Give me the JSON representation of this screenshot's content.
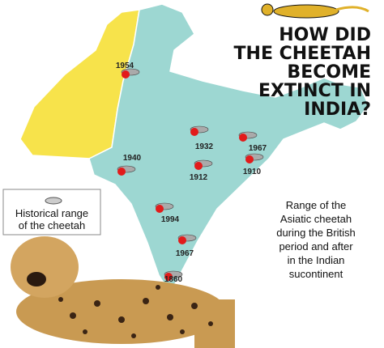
{
  "title_lines": [
    "HOW DID",
    "THE CHEETAH",
    "BECOME",
    "EXTINCT IN",
    "INDIA?"
  ],
  "legend_lines": [
    "Historical range",
    "of the cheetah"
  ],
  "caption_lines": [
    "Range of the",
    "Asiatic cheetah",
    "during the British",
    "period and after",
    "in the Indian",
    "sucontinent"
  ],
  "markers": [
    {
      "label": "1954"
    },
    {
      "label": "1932"
    },
    {
      "label": "1967"
    },
    {
      "label": "1940"
    },
    {
      "label": "1912"
    },
    {
      "label": "1910"
    },
    {
      "label": "1994"
    },
    {
      "label": "1967"
    },
    {
      "label": "1860"
    }
  ]
}
